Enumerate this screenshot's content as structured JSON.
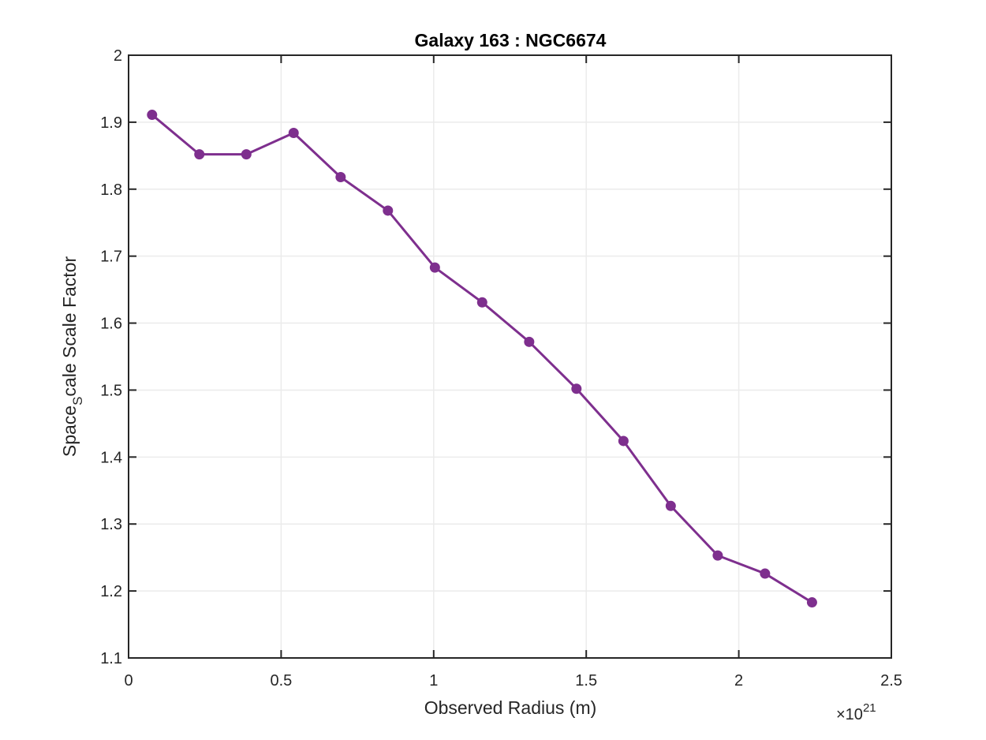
{
  "chart_data": {
    "type": "line",
    "title": "Galaxy 163 : NGC6674",
    "xlabel": "Observed Radius (m)",
    "ylabel_main": "Space",
    "ylabel_sub": "S",
    "ylabel_rest": "cale Scale Factor",
    "x_multiplier_base": "×10",
    "x_multiplier_exp": "21",
    "xlim": [
      0,
      2.5
    ],
    "ylim": [
      1.1,
      2.0
    ],
    "xticks": [
      0,
      0.5,
      1,
      1.5,
      2,
      2.5
    ],
    "xtick_labels": [
      "0",
      "0.5",
      "1",
      "1.5",
      "2",
      "2.5"
    ],
    "yticks": [
      1.1,
      1.2,
      1.3,
      1.4,
      1.5,
      1.6,
      1.7,
      1.8,
      1.9,
      2.0
    ],
    "ytick_labels": [
      "1.1",
      "1.2",
      "1.3",
      "1.4",
      "1.5",
      "1.6",
      "1.7",
      "1.8",
      "1.9",
      "2"
    ],
    "grid": true,
    "series": [
      {
        "color": "#7e2f8e",
        "x": [
          0.077,
          0.232,
          0.386,
          0.541,
          0.695,
          0.85,
          1.004,
          1.159,
          1.313,
          1.468,
          1.622,
          1.777,
          1.931,
          2.086,
          2.24
        ],
        "y": [
          1.911,
          1.852,
          1.852,
          1.884,
          1.818,
          1.768,
          1.683,
          1.631,
          1.572,
          1.502,
          1.424,
          1.327,
          1.253,
          1.226,
          1.183
        ]
      }
    ]
  }
}
